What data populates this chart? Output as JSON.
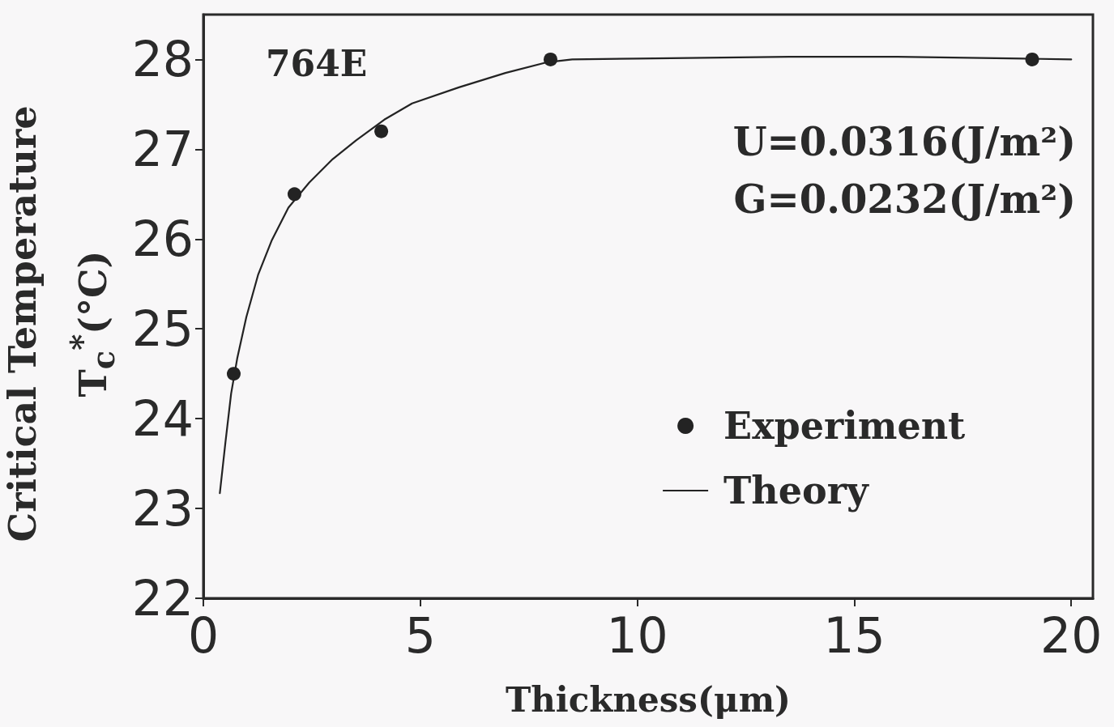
{
  "chart_data": {
    "type": "scatter",
    "xlabel": "Thickness(μm)",
    "ylabel": "Critical Temperature\nT$_{c}$$^{*}$(°C)",
    "annotations": [
      "764E",
      "U=0.0316(J/m²)",
      "G=0.0232(J/m²)"
    ],
    "series": [
      {
        "name": "Experiment",
        "marker": "circle",
        "color": "#232323",
        "x": [
          0.7,
          2.1,
          4.1,
          8.0,
          19.1
        ],
        "values": [
          24.5,
          26.5,
          27.2,
          28.0,
          28.0
        ]
      },
      {
        "name": "Theory",
        "type": "line",
        "marker": "none",
        "line_style": "solid",
        "color": "#232323",
        "x": [
          0.38,
          0.51,
          0.64,
          0.78,
          0.99,
          1.26,
          1.58,
          1.96,
          2.44,
          2.98,
          3.52,
          4.17,
          4.81,
          5.89,
          6.96,
          7.93,
          8.5,
          10,
          13.5,
          16,
          18.9,
          20
        ],
        "values": [
          23.17,
          23.74,
          24.28,
          24.67,
          25.13,
          25.6,
          25.99,
          26.35,
          26.63,
          26.89,
          27.1,
          27.33,
          27.51,
          27.69,
          27.85,
          27.97,
          28.0,
          28.01,
          28.03,
          28.03,
          28.01,
          28.0
        ]
      }
    ],
    "xlim": [
      0,
      20.5
    ],
    "xticks": [
      0,
      5,
      10,
      15,
      20
    ],
    "ylim": [
      22,
      28.5
    ],
    "yticks": [
      22,
      23,
      24,
      25,
      26,
      27,
      28
    ],
    "legend": "bottom right"
  }
}
